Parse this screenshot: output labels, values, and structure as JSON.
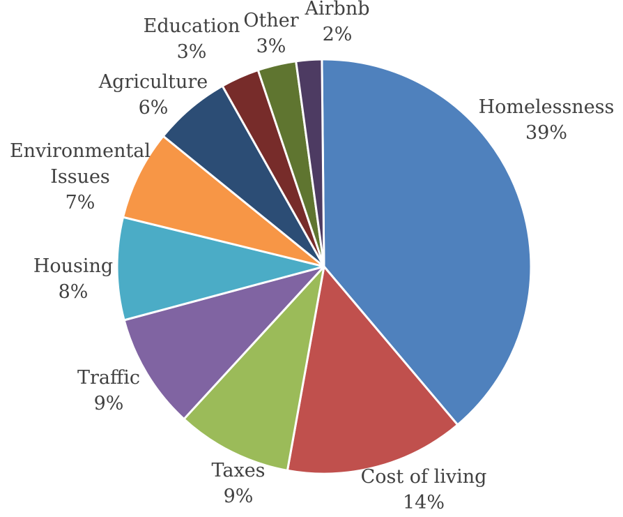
{
  "chart_data": {
    "type": "pie",
    "title": "",
    "start_angle_deg": -0.6,
    "direction": "clockwise",
    "slices": [
      {
        "label_lines": [
          "Homelessness"
        ],
        "value": 39,
        "value_label": "39%",
        "color": "#4F81BD"
      },
      {
        "label_lines": [
          "Cost of living"
        ],
        "value": 14,
        "value_label": "14%",
        "color": "#C0504D"
      },
      {
        "label_lines": [
          "Taxes"
        ],
        "value": 9,
        "value_label": "9%",
        "color": "#9BBB59"
      },
      {
        "label_lines": [
          "Traffic"
        ],
        "value": 9,
        "value_label": "9%",
        "color": "#8064A2"
      },
      {
        "label_lines": [
          "Housing"
        ],
        "value": 8,
        "value_label": "8%",
        "color": "#4BACC6"
      },
      {
        "label_lines": [
          "Environmental",
          "Issues"
        ],
        "value": 7,
        "value_label": "7%",
        "color": "#F79646"
      },
      {
        "label_lines": [
          "Agriculture"
        ],
        "value": 6,
        "value_label": "6%",
        "color": "#2C4D75"
      },
      {
        "label_lines": [
          "Education"
        ],
        "value": 3,
        "value_label": "3%",
        "color": "#772C2A"
      },
      {
        "label_lines": [
          "Other"
        ],
        "value": 3,
        "value_label": "3%",
        "color": "#5F7530"
      },
      {
        "label_lines": [
          "Airbnb"
        ],
        "value": 2,
        "value_label": "2%",
        "color": "#4D3B62"
      }
    ]
  }
}
